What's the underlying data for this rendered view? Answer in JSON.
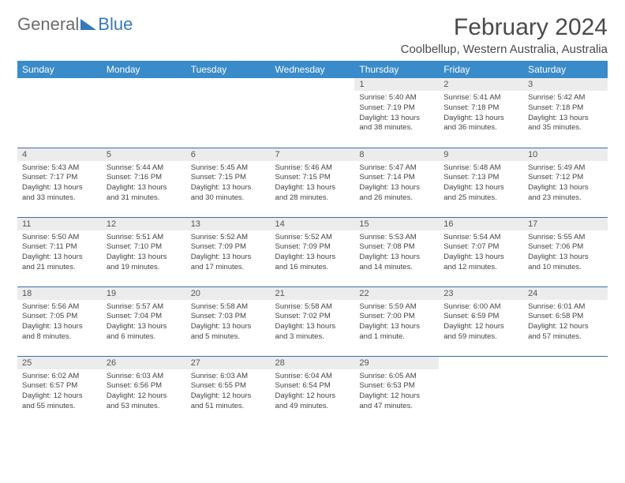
{
  "brand": {
    "part1": "General",
    "part2": "Blue"
  },
  "title": "February 2024",
  "location": "Coolbellup, Western Australia, Australia",
  "colors": {
    "header_bg": "#3a8bc9",
    "row_divider": "#3a6ea5",
    "daynum_bg": "#ececec",
    "brand_blue": "#3878b8"
  },
  "day_headers": [
    "Sunday",
    "Monday",
    "Tuesday",
    "Wednesday",
    "Thursday",
    "Friday",
    "Saturday"
  ],
  "weeks": [
    [
      null,
      null,
      null,
      null,
      {
        "n": "1",
        "sr": "Sunrise: 5:40 AM",
        "ss": "Sunset: 7:19 PM",
        "dl": "Daylight: 13 hours and 38 minutes."
      },
      {
        "n": "2",
        "sr": "Sunrise: 5:41 AM",
        "ss": "Sunset: 7:18 PM",
        "dl": "Daylight: 13 hours and 36 minutes."
      },
      {
        "n": "3",
        "sr": "Sunrise: 5:42 AM",
        "ss": "Sunset: 7:18 PM",
        "dl": "Daylight: 13 hours and 35 minutes."
      }
    ],
    [
      {
        "n": "4",
        "sr": "Sunrise: 5:43 AM",
        "ss": "Sunset: 7:17 PM",
        "dl": "Daylight: 13 hours and 33 minutes."
      },
      {
        "n": "5",
        "sr": "Sunrise: 5:44 AM",
        "ss": "Sunset: 7:16 PM",
        "dl": "Daylight: 13 hours and 31 minutes."
      },
      {
        "n": "6",
        "sr": "Sunrise: 5:45 AM",
        "ss": "Sunset: 7:15 PM",
        "dl": "Daylight: 13 hours and 30 minutes."
      },
      {
        "n": "7",
        "sr": "Sunrise: 5:46 AM",
        "ss": "Sunset: 7:15 PM",
        "dl": "Daylight: 13 hours and 28 minutes."
      },
      {
        "n": "8",
        "sr": "Sunrise: 5:47 AM",
        "ss": "Sunset: 7:14 PM",
        "dl": "Daylight: 13 hours and 26 minutes."
      },
      {
        "n": "9",
        "sr": "Sunrise: 5:48 AM",
        "ss": "Sunset: 7:13 PM",
        "dl": "Daylight: 13 hours and 25 minutes."
      },
      {
        "n": "10",
        "sr": "Sunrise: 5:49 AM",
        "ss": "Sunset: 7:12 PM",
        "dl": "Daylight: 13 hours and 23 minutes."
      }
    ],
    [
      {
        "n": "11",
        "sr": "Sunrise: 5:50 AM",
        "ss": "Sunset: 7:11 PM",
        "dl": "Daylight: 13 hours and 21 minutes."
      },
      {
        "n": "12",
        "sr": "Sunrise: 5:51 AM",
        "ss": "Sunset: 7:10 PM",
        "dl": "Daylight: 13 hours and 19 minutes."
      },
      {
        "n": "13",
        "sr": "Sunrise: 5:52 AM",
        "ss": "Sunset: 7:09 PM",
        "dl": "Daylight: 13 hours and 17 minutes."
      },
      {
        "n": "14",
        "sr": "Sunrise: 5:52 AM",
        "ss": "Sunset: 7:09 PM",
        "dl": "Daylight: 13 hours and 16 minutes."
      },
      {
        "n": "15",
        "sr": "Sunrise: 5:53 AM",
        "ss": "Sunset: 7:08 PM",
        "dl": "Daylight: 13 hours and 14 minutes."
      },
      {
        "n": "16",
        "sr": "Sunrise: 5:54 AM",
        "ss": "Sunset: 7:07 PM",
        "dl": "Daylight: 13 hours and 12 minutes."
      },
      {
        "n": "17",
        "sr": "Sunrise: 5:55 AM",
        "ss": "Sunset: 7:06 PM",
        "dl": "Daylight: 13 hours and 10 minutes."
      }
    ],
    [
      {
        "n": "18",
        "sr": "Sunrise: 5:56 AM",
        "ss": "Sunset: 7:05 PM",
        "dl": "Daylight: 13 hours and 8 minutes."
      },
      {
        "n": "19",
        "sr": "Sunrise: 5:57 AM",
        "ss": "Sunset: 7:04 PM",
        "dl": "Daylight: 13 hours and 6 minutes."
      },
      {
        "n": "20",
        "sr": "Sunrise: 5:58 AM",
        "ss": "Sunset: 7:03 PM",
        "dl": "Daylight: 13 hours and 5 minutes."
      },
      {
        "n": "21",
        "sr": "Sunrise: 5:58 AM",
        "ss": "Sunset: 7:02 PM",
        "dl": "Daylight: 13 hours and 3 minutes."
      },
      {
        "n": "22",
        "sr": "Sunrise: 5:59 AM",
        "ss": "Sunset: 7:00 PM",
        "dl": "Daylight: 13 hours and 1 minute."
      },
      {
        "n": "23",
        "sr": "Sunrise: 6:00 AM",
        "ss": "Sunset: 6:59 PM",
        "dl": "Daylight: 12 hours and 59 minutes."
      },
      {
        "n": "24",
        "sr": "Sunrise: 6:01 AM",
        "ss": "Sunset: 6:58 PM",
        "dl": "Daylight: 12 hours and 57 minutes."
      }
    ],
    [
      {
        "n": "25",
        "sr": "Sunrise: 6:02 AM",
        "ss": "Sunset: 6:57 PM",
        "dl": "Daylight: 12 hours and 55 minutes."
      },
      {
        "n": "26",
        "sr": "Sunrise: 6:03 AM",
        "ss": "Sunset: 6:56 PM",
        "dl": "Daylight: 12 hours and 53 minutes."
      },
      {
        "n": "27",
        "sr": "Sunrise: 6:03 AM",
        "ss": "Sunset: 6:55 PM",
        "dl": "Daylight: 12 hours and 51 minutes."
      },
      {
        "n": "28",
        "sr": "Sunrise: 6:04 AM",
        "ss": "Sunset: 6:54 PM",
        "dl": "Daylight: 12 hours and 49 minutes."
      },
      {
        "n": "29",
        "sr": "Sunrise: 6:05 AM",
        "ss": "Sunset: 6:53 PM",
        "dl": "Daylight: 12 hours and 47 minutes."
      },
      null,
      null
    ]
  ]
}
